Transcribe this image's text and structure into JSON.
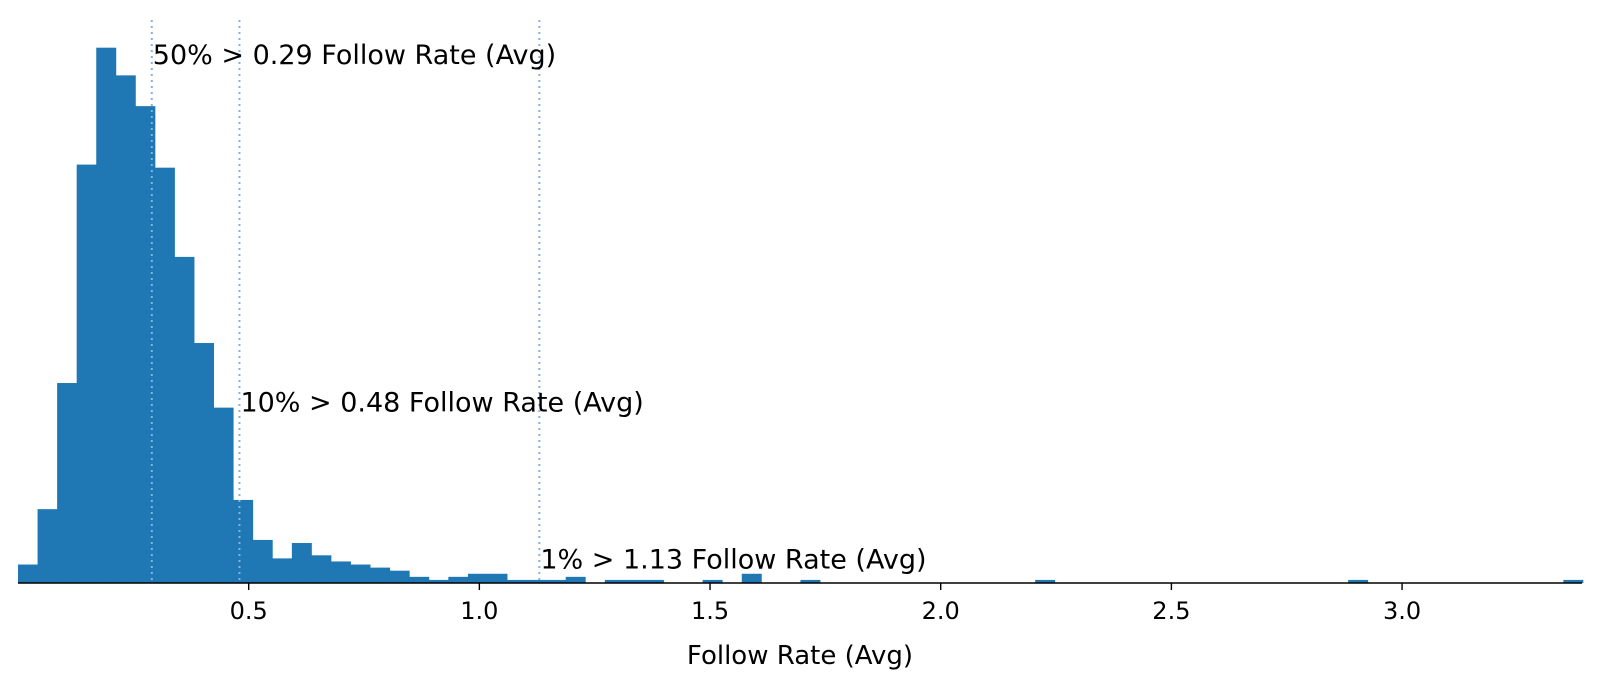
{
  "chart_data": {
    "type": "histogram",
    "title": "",
    "xlabel": "Follow Rate (Avg)",
    "ylabel": "",
    "xlim": [
      0.0,
      3.39
    ],
    "ylim": [
      0,
      183
    ],
    "y_axis_visible": false,
    "grid": false,
    "bar_color": "#1f77b4",
    "line_color": "#7fb2e5",
    "bins": {
      "start": 0.0,
      "width": 0.0424,
      "counts": [
        6,
        24,
        65,
        136,
        174,
        165,
        155,
        135,
        106,
        78,
        57,
        27,
        14,
        8,
        13,
        9,
        7,
        6,
        5,
        4,
        2,
        1,
        2,
        3,
        3,
        1,
        1,
        1,
        2,
        0,
        1,
        1,
        1,
        0,
        0,
        1,
        0,
        3,
        0,
        0,
        1,
        0,
        0,
        0,
        0,
        0,
        0,
        0,
        0,
        0,
        0,
        0,
        1,
        0,
        0,
        0,
        0,
        0,
        0,
        0,
        0,
        0,
        0,
        0,
        0,
        0,
        0,
        0,
        1,
        0,
        0,
        0,
        0,
        0,
        0,
        0,
        0,
        0,
        0,
        1
      ]
    },
    "x_ticks": [
      0.5,
      1.0,
      1.5,
      2.0,
      2.5,
      3.0
    ],
    "x_tick_labels": [
      "0.5",
      "1.0",
      "1.5",
      "2.0",
      "2.5",
      "3.0"
    ],
    "threshold_lines": [
      {
        "x": 0.29,
        "label": "50% > 0.29 Follow Rate (Avg)",
        "label_y": 172
      },
      {
        "x": 0.48,
        "label": "10% > 0.48 Follow Rate (Avg)",
        "label_y": 59
      },
      {
        "x": 1.13,
        "label": "1% > 1.13 Follow Rate (Avg)",
        "label_y": 8
      }
    ]
  }
}
